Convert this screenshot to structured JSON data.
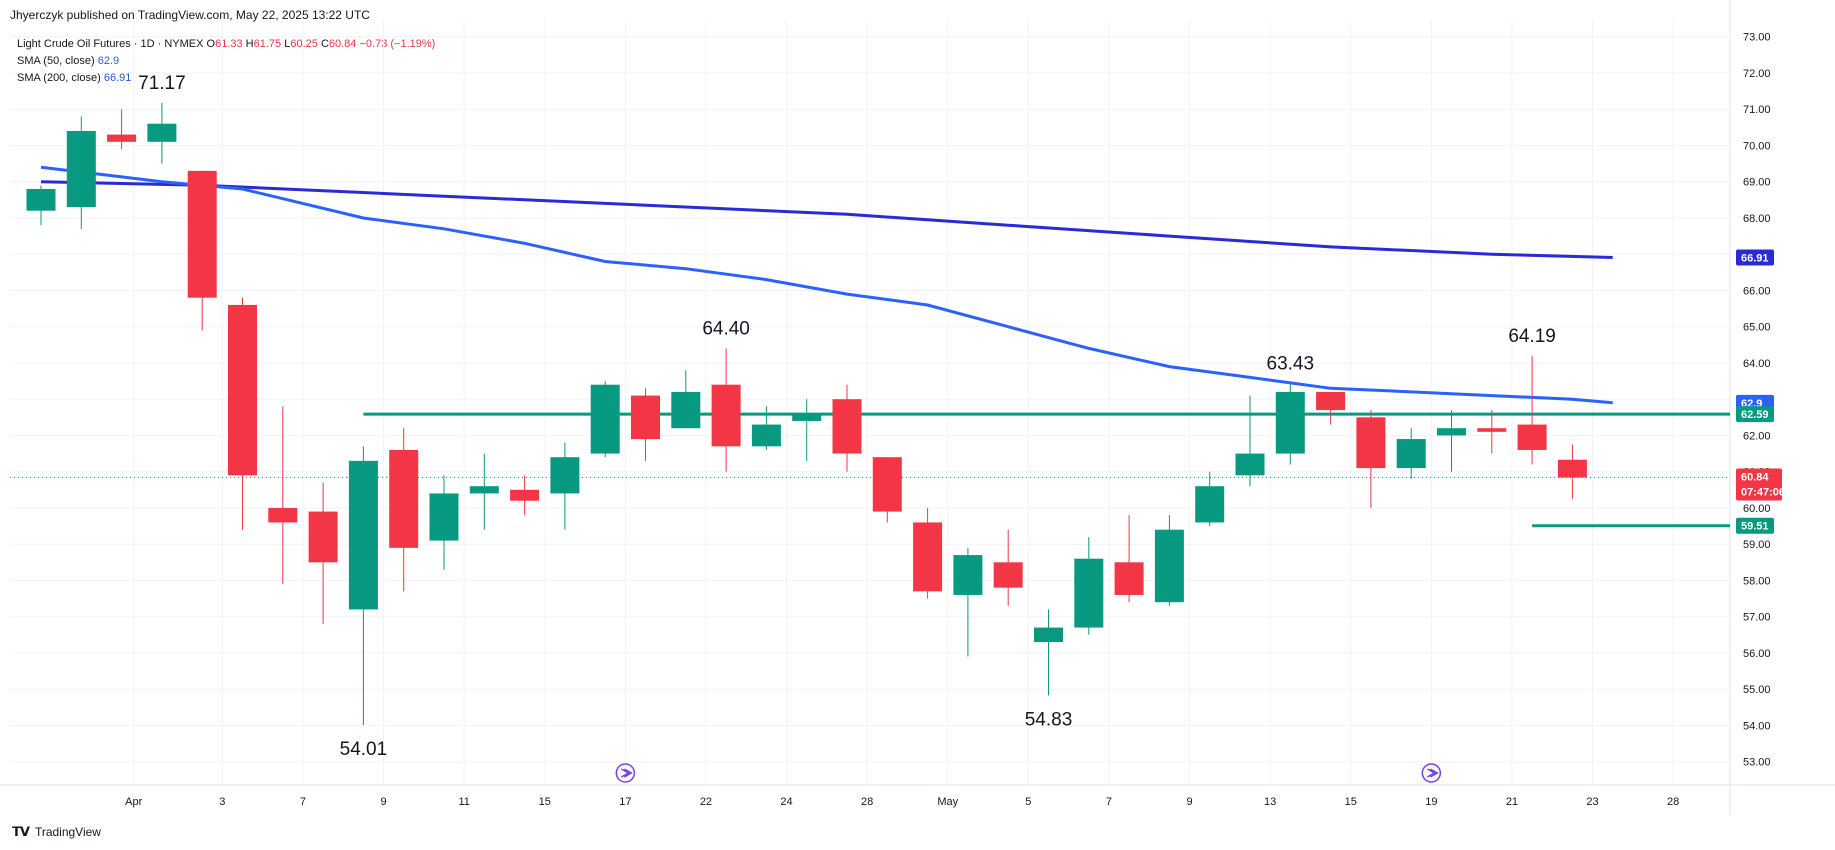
{
  "header": {
    "text": "Jhyerczyk published on TradingView.com, May 22, 2025 13:22 UTC"
  },
  "legend": {
    "symbol": "Light Crude Oil Futures · 1D · NYMEX",
    "o_label": "O",
    "o_value": "61.33",
    "h_label": "H",
    "h_value": "61.75",
    "l_label": "L",
    "l_value": "60.25",
    "c_label": "C",
    "c_value": "60.84",
    "change": "−0.73 (−1.19%)",
    "sma50_label": "SMA (50, close)",
    "sma50_value": "62.9",
    "sma200_label": "SMA (200, close)",
    "sma200_value": "66.91"
  },
  "footer": {
    "brand": "TradingView"
  },
  "colors": {
    "up": "#089981",
    "down": "#f23645",
    "sma50": "#2962ff",
    "sma200": "#2a2ad6",
    "level": "#089981",
    "grid": "#f0f3fa"
  },
  "chart_data": {
    "type": "candlestick",
    "ylim": [
      52.5,
      73.5
    ],
    "y_ticks": [
      "53.00",
      "54.00",
      "55.00",
      "56.00",
      "57.00",
      "58.00",
      "59.00",
      "60.00",
      "61.00",
      "62.00",
      "63.00",
      "64.00",
      "65.00",
      "66.00",
      "67.00",
      "68.00",
      "69.00",
      "70.00",
      "71.00",
      "72.00",
      "73.00"
    ],
    "x_ticks": [
      {
        "label": "Apr",
        "index": 2.3
      },
      {
        "label": "3",
        "index": 4.5
      },
      {
        "label": "7",
        "index": 6.5
      },
      {
        "label": "9",
        "index": 8.5
      },
      {
        "label": "11",
        "index": 10.5
      },
      {
        "label": "15",
        "index": 12.5
      },
      {
        "label": "17",
        "index": 14.5
      },
      {
        "label": "22",
        "index": 16.5
      },
      {
        "label": "24",
        "index": 18.5
      },
      {
        "label": "28",
        "index": 20.5
      },
      {
        "label": "May",
        "index": 22.5
      },
      {
        "label": "5",
        "index": 24.5
      },
      {
        "label": "7",
        "index": 26.5
      },
      {
        "label": "9",
        "index": 28.5
      },
      {
        "label": "13",
        "index": 30.5
      },
      {
        "label": "15",
        "index": 32.5
      },
      {
        "label": "19",
        "index": 34.5
      },
      {
        "label": "21",
        "index": 36.5
      },
      {
        "label": "23",
        "index": 38.5
      },
      {
        "label": "28",
        "index": 40.5
      }
    ],
    "candles": [
      {
        "o": 68.2,
        "h": 68.9,
        "l": 67.8,
        "c": 68.8
      },
      {
        "o": 68.3,
        "h": 70.8,
        "l": 67.7,
        "c": 70.4
      },
      {
        "o": 70.3,
        "h": 71.0,
        "l": 69.9,
        "c": 70.1
      },
      {
        "o": 70.1,
        "h": 71.17,
        "l": 69.5,
        "c": 70.6
      },
      {
        "o": 69.3,
        "h": 69.3,
        "l": 64.9,
        "c": 65.8
      },
      {
        "o": 65.6,
        "h": 65.8,
        "l": 59.4,
        "c": 60.9
      },
      {
        "o": 60.0,
        "h": 62.8,
        "l": 57.9,
        "c": 59.6
      },
      {
        "o": 59.9,
        "h": 60.7,
        "l": 56.8,
        "c": 58.5
      },
      {
        "o": 57.2,
        "h": 61.7,
        "l": 54.01,
        "c": 61.3
      },
      {
        "o": 61.6,
        "h": 62.2,
        "l": 57.7,
        "c": 58.9
      },
      {
        "o": 59.1,
        "h": 60.9,
        "l": 58.3,
        "c": 60.4
      },
      {
        "o": 60.4,
        "h": 61.5,
        "l": 59.4,
        "c": 60.6
      },
      {
        "o": 60.5,
        "h": 60.9,
        "l": 59.8,
        "c": 60.2
      },
      {
        "o": 60.4,
        "h": 61.8,
        "l": 59.4,
        "c": 61.4
      },
      {
        "o": 61.5,
        "h": 63.5,
        "l": 61.4,
        "c": 63.4
      },
      {
        "o": 63.1,
        "h": 63.3,
        "l": 61.3,
        "c": 61.9
      },
      {
        "o": 62.2,
        "h": 63.8,
        "l": 62.2,
        "c": 63.2
      },
      {
        "o": 63.4,
        "h": 64.4,
        "l": 61.0,
        "c": 61.7
      },
      {
        "o": 61.7,
        "h": 62.8,
        "l": 61.6,
        "c": 62.3
      },
      {
        "o": 62.4,
        "h": 63.0,
        "l": 61.3,
        "c": 62.6
      },
      {
        "o": 63.0,
        "h": 63.4,
        "l": 61.0,
        "c": 61.5
      },
      {
        "o": 61.4,
        "h": 61.4,
        "l": 59.6,
        "c": 59.9
      },
      {
        "o": 59.6,
        "h": 60.0,
        "l": 57.5,
        "c": 57.7
      },
      {
        "o": 57.6,
        "h": 58.9,
        "l": 55.9,
        "c": 58.7
      },
      {
        "o": 58.5,
        "h": 59.4,
        "l": 57.3,
        "c": 57.8
      },
      {
        "o": 56.3,
        "h": 57.2,
        "l": 54.83,
        "c": 56.7
      },
      {
        "o": 56.7,
        "h": 59.2,
        "l": 56.5,
        "c": 58.6
      },
      {
        "o": 58.5,
        "h": 59.8,
        "l": 57.4,
        "c": 57.6
      },
      {
        "o": 57.4,
        "h": 59.8,
        "l": 57.3,
        "c": 59.4
      },
      {
        "o": 59.6,
        "h": 61.0,
        "l": 59.5,
        "c": 60.6
      },
      {
        "o": 60.9,
        "h": 63.1,
        "l": 60.6,
        "c": 61.5
      },
      {
        "o": 61.5,
        "h": 63.43,
        "l": 61.2,
        "c": 63.2
      },
      {
        "o": 63.2,
        "h": 63.2,
        "l": 62.3,
        "c": 62.7
      },
      {
        "o": 62.5,
        "h": 62.7,
        "l": 60.0,
        "c": 61.1
      },
      {
        "o": 61.1,
        "h": 62.2,
        "l": 60.8,
        "c": 61.9
      },
      {
        "o": 62.0,
        "h": 62.7,
        "l": 61.0,
        "c": 62.2
      },
      {
        "o": 62.2,
        "h": 62.7,
        "l": 61.5,
        "c": 62.1
      },
      {
        "o": 62.3,
        "h": 64.19,
        "l": 61.2,
        "c": 61.6
      },
      {
        "o": 61.33,
        "h": 61.75,
        "l": 60.25,
        "c": 60.84
      }
    ],
    "sma50": [
      [
        0,
        69.4
      ],
      [
        3,
        69.0
      ],
      [
        5,
        68.8
      ],
      [
        8,
        68.0
      ],
      [
        10,
        67.7
      ],
      [
        12,
        67.3
      ],
      [
        14,
        66.8
      ],
      [
        16,
        66.6
      ],
      [
        18,
        66.3
      ],
      [
        20,
        65.9
      ],
      [
        22,
        65.6
      ],
      [
        24,
        65.0
      ],
      [
        26,
        64.4
      ],
      [
        28,
        63.9
      ],
      [
        30,
        63.6
      ],
      [
        32,
        63.3
      ],
      [
        34,
        63.2
      ],
      [
        36,
        63.1
      ],
      [
        38,
        63.0
      ],
      [
        39,
        62.9
      ]
    ],
    "sma200": [
      [
        0,
        69.0
      ],
      [
        4,
        68.9
      ],
      [
        10,
        68.6
      ],
      [
        14,
        68.4
      ],
      [
        20,
        68.1
      ],
      [
        24,
        67.8
      ],
      [
        28,
        67.5
      ],
      [
        32,
        67.2
      ],
      [
        36,
        67.0
      ],
      [
        39,
        66.91
      ]
    ],
    "level_lines": [
      {
        "value": 62.59,
        "from_index": 8,
        "to_index": 44.5,
        "label": "62.59"
      },
      {
        "value": 59.51,
        "from_index": 37,
        "to_index": 44.5,
        "label": "59.51"
      }
    ],
    "price_tags": [
      {
        "value": 66.91,
        "label": "66.91",
        "color": "#2a2ad6"
      },
      {
        "value": 62.9,
        "label": "62.9",
        "color": "#2962ff"
      },
      {
        "value": 62.59,
        "label": "62.59",
        "color": "#089981"
      },
      {
        "value": 60.84,
        "label": "60.84",
        "sublabel": "07:47:06",
        "color": "#f23645"
      },
      {
        "value": 59.51,
        "label": "59.51",
        "color": "#089981"
      }
    ],
    "annotations": [
      {
        "label": "71.17",
        "index": 3,
        "value": 71.17
      },
      {
        "label": "54.01",
        "index": 8,
        "value": 54.01
      },
      {
        "label": "64.40",
        "index": 17,
        "value": 64.4
      },
      {
        "label": "54.83",
        "index": 25,
        "value": 54.83
      },
      {
        "label": "63.43",
        "index": 31,
        "value": 63.43
      },
      {
        "label": "64.19",
        "index": 37,
        "value": 64.19
      }
    ],
    "event_markers": [
      14.5,
      34.5
    ],
    "last_price": 60.84
  }
}
